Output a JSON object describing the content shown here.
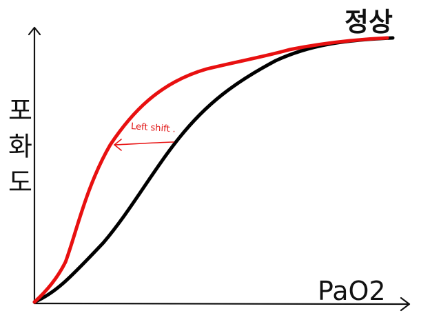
{
  "curve_label": "정상",
  "y_axis_label": "포화도",
  "x_axis_label": "PaO2",
  "annotation": "Left shift ."
}
